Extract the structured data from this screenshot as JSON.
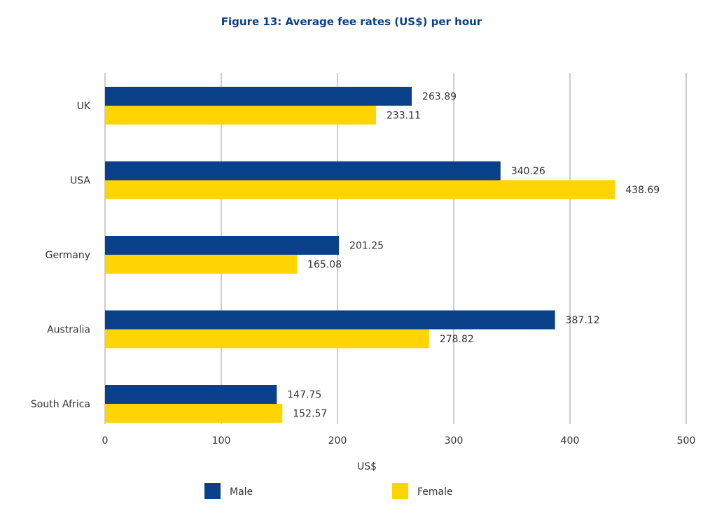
{
  "chart_data": {
    "type": "bar",
    "orientation": "horizontal",
    "title": "Figure 13: Average fee rates (US$) per hour",
    "xlabel": "US$",
    "ylabel": "",
    "xlim": [
      0,
      500
    ],
    "xticks": [
      "0",
      "100",
      "200",
      "300",
      "400",
      "500"
    ],
    "grid": true,
    "legend_position": "bottom",
    "categories": [
      "UK",
      "USA",
      "Germany",
      "Australia",
      "South Africa"
    ],
    "series": [
      {
        "name": "Male",
        "color": "#0A3F8A",
        "values": [
          263.89,
          340.26,
          201.25,
          387.12,
          147.75
        ],
        "labels": [
          "263.89",
          "340.26",
          "201.25",
          "387.12",
          "147.75"
        ]
      },
      {
        "name": "Female",
        "color": "#FFD500",
        "values": [
          233.11,
          438.69,
          165.08,
          278.82,
          152.57
        ],
        "labels": [
          "233.11",
          "438.69",
          "165.08",
          "278.82",
          "152.57"
        ]
      }
    ]
  },
  "colors": {
    "title": "#0A3F8A",
    "text": "#333333",
    "grid": "#CCCCCC"
  }
}
